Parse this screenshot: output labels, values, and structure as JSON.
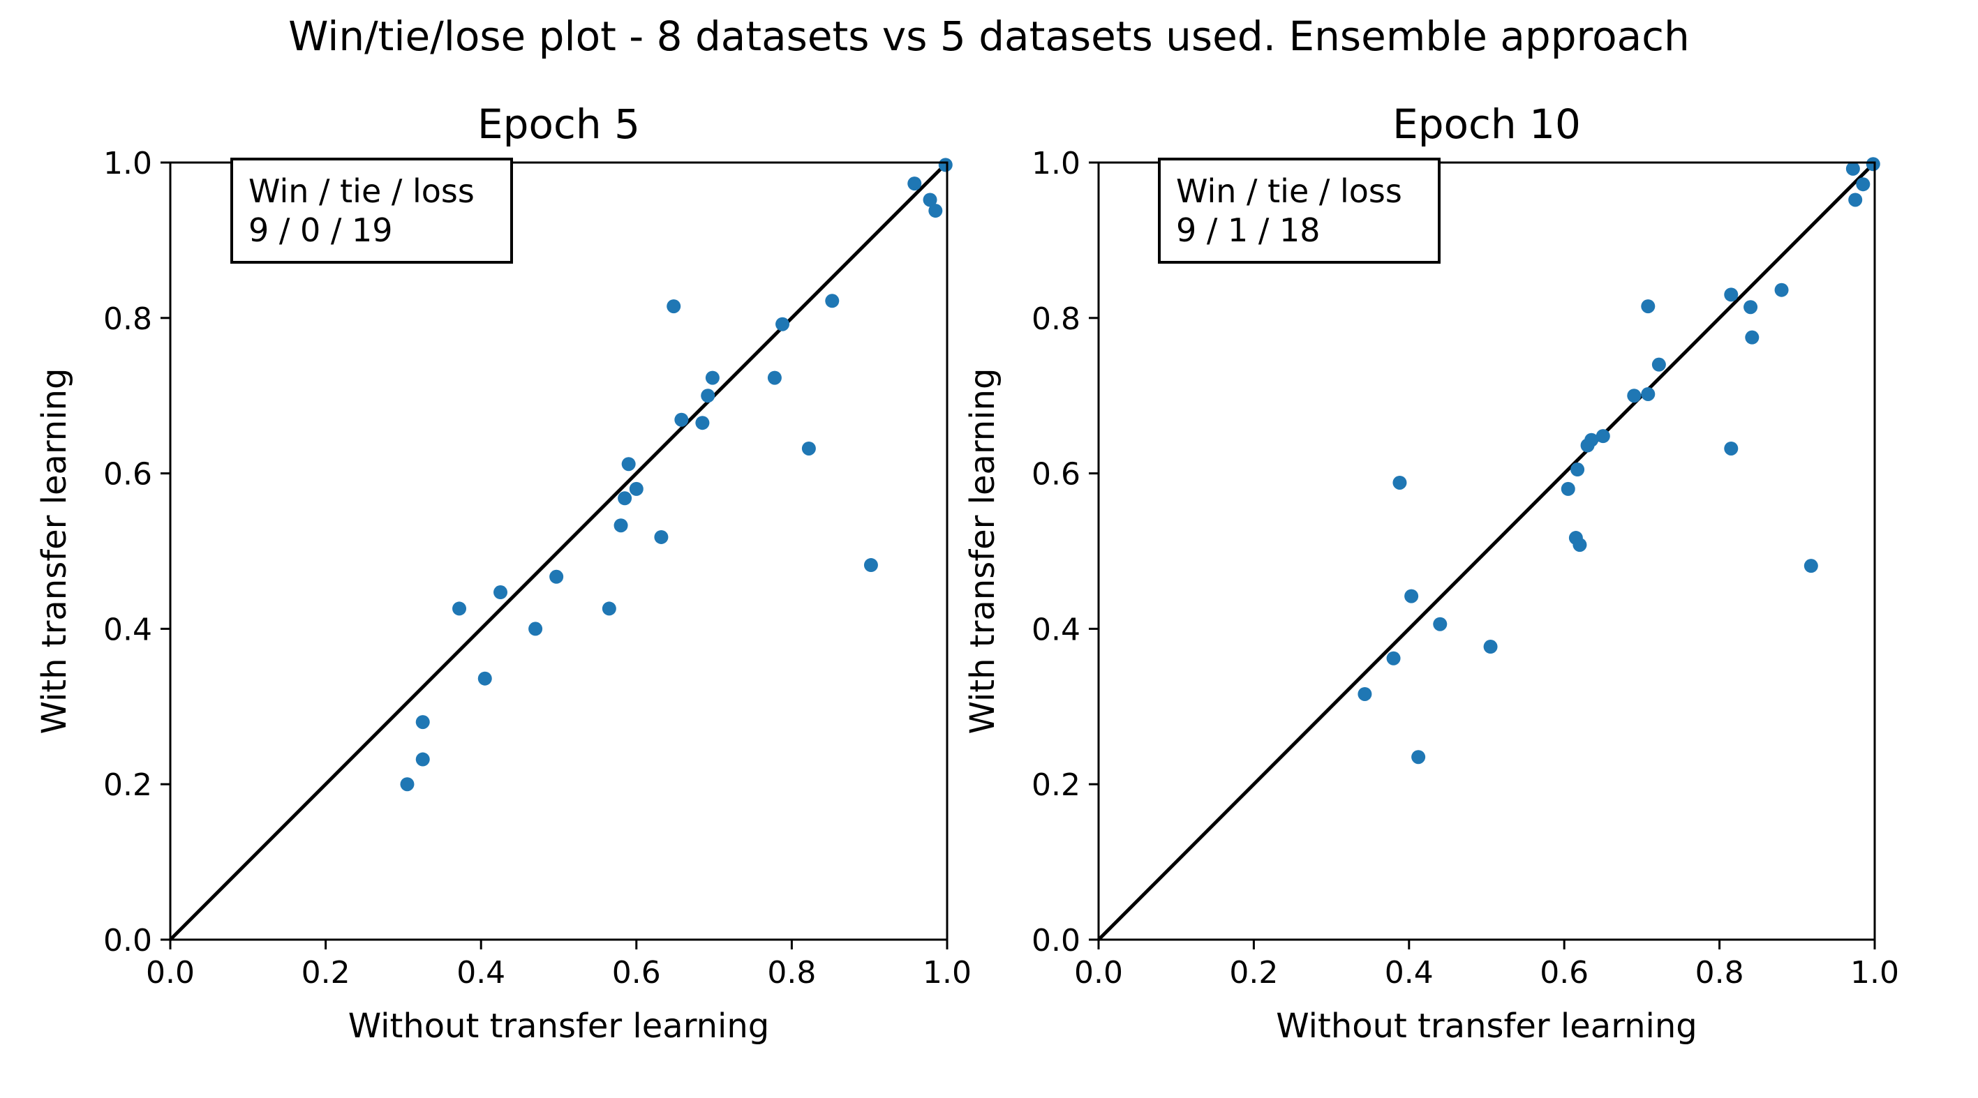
{
  "figure": {
    "suptitle": "Win/tie/lose plot - 8 datasets vs 5 datasets used. Ensemble  approach",
    "colors": {
      "point": "#1f77b4",
      "diagonal": "#000000",
      "frame": "#000000"
    }
  },
  "chart_data": [
    {
      "type": "scatter",
      "title": "Epoch 5",
      "xlabel": "Without transfer learning",
      "ylabel": "With transfer learning",
      "xlim": [
        0.0,
        1.0
      ],
      "ylim": [
        0.0,
        1.0
      ],
      "xticks": [
        "0.0",
        "0.2",
        "0.4",
        "0.6",
        "0.8",
        "1.0"
      ],
      "yticks": [
        "0.0",
        "0.2",
        "0.4",
        "0.6",
        "0.8",
        "1.0"
      ],
      "grid": false,
      "reference_line": "y = x",
      "annotation": {
        "line1": "Win / tie / loss",
        "line2": "9 / 0 / 19"
      },
      "points": [
        [
          0.305,
          0.2
        ],
        [
          0.325,
          0.232
        ],
        [
          0.325,
          0.28
        ],
        [
          0.372,
          0.426
        ],
        [
          0.405,
          0.336
        ],
        [
          0.425,
          0.447
        ],
        [
          0.47,
          0.4
        ],
        [
          0.497,
          0.467
        ],
        [
          0.565,
          0.426
        ],
        [
          0.58,
          0.533
        ],
        [
          0.585,
          0.568
        ],
        [
          0.59,
          0.612
        ],
        [
          0.6,
          0.58
        ],
        [
          0.632,
          0.518
        ],
        [
          0.648,
          0.815
        ],
        [
          0.658,
          0.669
        ],
        [
          0.685,
          0.665
        ],
        [
          0.692,
          0.7
        ],
        [
          0.698,
          0.723
        ],
        [
          0.778,
          0.723
        ],
        [
          0.788,
          0.792
        ],
        [
          0.822,
          0.632
        ],
        [
          0.852,
          0.822
        ],
        [
          0.902,
          0.482
        ],
        [
          0.958,
          0.973
        ],
        [
          0.978,
          0.952
        ],
        [
          0.985,
          0.938
        ],
        [
          0.998,
          0.997
        ]
      ]
    },
    {
      "type": "scatter",
      "title": "Epoch 10",
      "xlabel": "Without transfer learning",
      "ylabel": "With transfer learning",
      "xlim": [
        0.0,
        1.0
      ],
      "ylim": [
        0.0,
        1.0
      ],
      "xticks": [
        "0.0",
        "0.2",
        "0.4",
        "0.6",
        "0.8",
        "1.0"
      ],
      "yticks": [
        "0.0",
        "0.2",
        "0.4",
        "0.6",
        "0.8",
        "1.0"
      ],
      "grid": false,
      "reference_line": "y = x",
      "annotation": {
        "line1": "Win / tie / loss",
        "line2": "9 / 1 / 18"
      },
      "points": [
        [
          0.343,
          0.316
        ],
        [
          0.38,
          0.362
        ],
        [
          0.388,
          0.588
        ],
        [
          0.403,
          0.442
        ],
        [
          0.412,
          0.235
        ],
        [
          0.44,
          0.406
        ],
        [
          0.505,
          0.377
        ],
        [
          0.605,
          0.58
        ],
        [
          0.615,
          0.517
        ],
        [
          0.617,
          0.605
        ],
        [
          0.62,
          0.508
        ],
        [
          0.63,
          0.636
        ],
        [
          0.635,
          0.643
        ],
        [
          0.65,
          0.648
        ],
        [
          0.69,
          0.7
        ],
        [
          0.708,
          0.815
        ],
        [
          0.708,
          0.702
        ],
        [
          0.722,
          0.74
        ],
        [
          0.815,
          0.83
        ],
        [
          0.815,
          0.632
        ],
        [
          0.84,
          0.814
        ],
        [
          0.842,
          0.775
        ],
        [
          0.88,
          0.836
        ],
        [
          0.918,
          0.481
        ],
        [
          0.972,
          0.992
        ],
        [
          0.975,
          0.952
        ],
        [
          0.985,
          0.972
        ],
        [
          0.998,
          0.998
        ]
      ]
    }
  ]
}
